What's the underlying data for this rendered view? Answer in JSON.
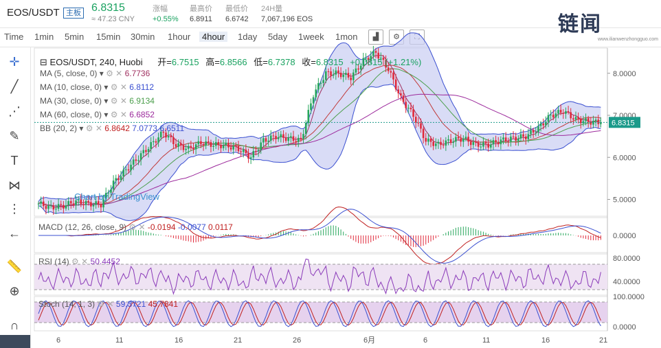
{
  "header": {
    "pair": "EOS/USDT",
    "badge": "主板",
    "price": "6.8315",
    "cny": "≈ 47.23 CNY",
    "stats": [
      {
        "label": "涨幅",
        "value": "+0.55%"
      },
      {
        "label": "最高价",
        "value": "6.8911"
      },
      {
        "label": "最低价",
        "value": "6.6742"
      },
      {
        "label": "24H量",
        "value": "7,067,196 EOS"
      }
    ],
    "watermark": "链闻",
    "watermark_sub": "www.ilianwenzhongguo.com"
  },
  "toolbar": {
    "intervals": [
      "Time",
      "1min",
      "5min",
      "15min",
      "30min",
      "1hour",
      "4hour",
      "1day",
      "5day",
      "1week",
      "1mon"
    ],
    "active": "4hour",
    "icons": [
      "chart-type-icon",
      "settings-icon",
      "fullscreen-icon"
    ]
  },
  "tools": [
    "crosshair-icon",
    "trend-line-icon",
    "fib-icon",
    "brush-icon",
    "text-icon",
    "pattern-icon",
    "measure-icon",
    "back-arrow-icon",
    "ruler-icon",
    "zoom-icon",
    "magnet-icon"
  ],
  "colors": {
    "up": "#26a65b",
    "down": "#e0293a",
    "ma5": "#a03060",
    "ma10": "#c03a3a",
    "ma30": "#4c9f4c",
    "ma60": "#9c2a9c",
    "bb": "#3a4fd0",
    "bbfill": "#c9cdf2",
    "macd": "#c02020",
    "signal": "#3a4fd0",
    "rsi": "#8a3ab9",
    "stochk": "#3a4fd0",
    "stochd": "#c02020",
    "price_line": "#1a9a8a"
  },
  "chart_data": {
    "type": "candlestick",
    "title": "EOS/USDT, 240, Huobi",
    "ohlc": {
      "open": "6.7515",
      "high": "6.8566",
      "low": "6.7378",
      "close": "6.8315",
      "change": "+0.0815 (+1.21%)"
    },
    "ohlc_labels": {
      "open": "开=",
      "high": "高=",
      "low": "低=",
      "close": "收="
    },
    "indicators": [
      {
        "name": "MA (5, close, 0)",
        "value": "6.7736"
      },
      {
        "name": "MA (10, close, 0)",
        "value": "6.8112"
      },
      {
        "name": "MA (30, close, 0)",
        "value": "6.9134"
      },
      {
        "name": "MA (60, close, 0)",
        "value": "6.6852"
      },
      {
        "name": "BB (20, 2)",
        "values": [
          "6.8642",
          "7.0773",
          "6.6511"
        ]
      }
    ],
    "price_axis": {
      "ticks": [
        "8.0000",
        "7.0000",
        "6.0000",
        "5.0000"
      ],
      "last": "6.8315",
      "ylim": [
        4.6,
        8.6
      ]
    },
    "x_labels": [
      "6",
      "11",
      "16",
      "21",
      "26",
      "6月",
      "6",
      "11",
      "16",
      "21"
    ],
    "watermark": "Chart by TradingView",
    "close_path": [
      4.9,
      4.8,
      4.85,
      4.95,
      4.9,
      4.88,
      5.4,
      5.7,
      6.0,
      6.3,
      6.6,
      6.3,
      6.2,
      6.35,
      6.3,
      6.28,
      6.2,
      6.0,
      6.4,
      6.5,
      6.45,
      6.4,
      7.5,
      8.0,
      8.0,
      7.9,
      8.3,
      8.5,
      8.1,
      7.4,
      7.0,
      6.4,
      6.3,
      6.4,
      6.45,
      6.3,
      6.3,
      6.4,
      6.45,
      6.5,
      6.7,
      7.0,
      7.1,
      6.9,
      6.85,
      6.83
    ],
    "macd": {
      "title": "MACD (12, 26, close, 9)",
      "values": [
        "-0.0194",
        "-0.0077",
        "0.0117"
      ],
      "axis": "0.0000"
    },
    "rsi": {
      "title": "RSI (14)",
      "value": "50.4452",
      "ticks": [
        "80.0000",
        "40.0000"
      ]
    },
    "stoch": {
      "title": "Stoch (14, 1, 3)",
      "values": [
        "59.3721",
        "45.7841"
      ],
      "ticks": [
        "100.0000",
        "0.0000"
      ]
    }
  }
}
